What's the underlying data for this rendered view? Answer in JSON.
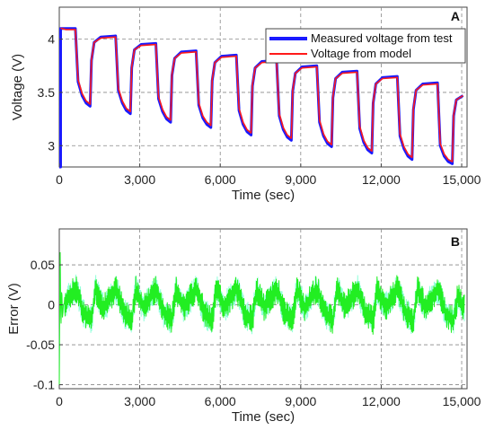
{
  "chart_data": [
    {
      "panel_label": "A",
      "type": "line",
      "xlabel": "Time (sec)",
      "ylabel": "Voltage (V)",
      "xlim": [
        0,
        15200
      ],
      "ylim": [
        2.8,
        4.3
      ],
      "xticks": [
        0,
        3000,
        6000,
        9000,
        12000,
        15000
      ],
      "xtick_labels": [
        "0",
        "3,000",
        "6,000",
        "9,000",
        "12,000",
        "15,000"
      ],
      "yticks": [
        3,
        3.5,
        4
      ],
      "ytick_labels": [
        "3",
        "3.5",
        "4"
      ],
      "grid": true,
      "legend_position": "top-right",
      "series": [
        {
          "name": "Measured voltage from test",
          "color": "#1a1aff",
          "x": [
            0,
            50,
            50,
            100,
            250,
            600,
            700,
            850,
            1000,
            1150,
            1200,
            1300,
            1550,
            2100,
            2200,
            2350,
            2500,
            2650,
            2700,
            2800,
            3050,
            3600,
            3700,
            3850,
            4000,
            4150,
            4200,
            4300,
            4550,
            5100,
            5200,
            5350,
            5500,
            5650,
            5700,
            5800,
            6050,
            6600,
            6700,
            6850,
            7000,
            7150,
            7200,
            7300,
            7550,
            8100,
            8200,
            8350,
            8500,
            8650,
            8700,
            8800,
            9050,
            9600,
            9700,
            9850,
            10000,
            10150,
            10200,
            10300,
            10550,
            11100,
            11200,
            11350,
            11500,
            11650,
            11700,
            11800,
            12050,
            12600,
            12700,
            12850,
            13000,
            13150,
            13200,
            13300,
            13550,
            14100,
            14200,
            14350,
            14500,
            14650,
            14700,
            14800,
            15050
          ],
          "y": [
            2.8,
            2.8,
            4.1,
            4.1,
            4.1,
            4.1,
            3.6,
            3.47,
            3.4,
            3.37,
            3.8,
            3.97,
            4.02,
            4.03,
            3.52,
            3.4,
            3.33,
            3.3,
            3.73,
            3.9,
            3.95,
            3.96,
            3.44,
            3.32,
            3.25,
            3.22,
            3.66,
            3.82,
            3.88,
            3.89,
            3.38,
            3.26,
            3.2,
            3.17,
            3.61,
            3.78,
            3.84,
            3.85,
            3.33,
            3.2,
            3.13,
            3.1,
            3.56,
            3.73,
            3.79,
            3.8,
            3.28,
            3.15,
            3.08,
            3.05,
            3.51,
            3.68,
            3.74,
            3.75,
            3.22,
            3.09,
            3.02,
            2.99,
            3.45,
            3.63,
            3.69,
            3.7,
            3.16,
            3.03,
            2.96,
            2.93,
            3.4,
            3.58,
            3.64,
            3.65,
            3.09,
            2.97,
            2.9,
            2.87,
            3.34,
            3.52,
            3.58,
            3.59,
            3.0,
            2.9,
            2.85,
            2.83,
            3.28,
            3.43,
            3.47
          ]
        },
        {
          "name": "Voltage from model",
          "color": "#ff1a1a",
          "x": [
            50,
            100,
            250,
            600,
            700,
            850,
            1000,
            1150,
            1200,
            1300,
            1550,
            2100,
            2200,
            2350,
            2500,
            2650,
            2700,
            2800,
            3050,
            3600,
            3700,
            3850,
            4000,
            4150,
            4200,
            4300,
            4550,
            5100,
            5200,
            5350,
            5500,
            5650,
            5700,
            5800,
            6050,
            6600,
            6700,
            6850,
            7000,
            7150,
            7200,
            7300,
            7550,
            8100,
            8200,
            8350,
            8500,
            8650,
            8700,
            8800,
            9050,
            9600,
            9700,
            9850,
            10000,
            10150,
            10200,
            10300,
            10550,
            11100,
            11200,
            11350,
            11500,
            11650,
            11700,
            11800,
            12050,
            12600,
            12700,
            12850,
            13000,
            13150,
            13200,
            13300,
            13550,
            14100,
            14200,
            14350,
            14500,
            14650,
            14700,
            14800,
            15050
          ],
          "y": [
            4.1,
            4.1,
            4.09,
            4.09,
            3.62,
            3.49,
            3.42,
            3.39,
            3.81,
            3.97,
            4.01,
            4.02,
            3.54,
            3.42,
            3.35,
            3.32,
            3.74,
            3.9,
            3.94,
            3.95,
            3.46,
            3.34,
            3.27,
            3.24,
            3.67,
            3.82,
            3.87,
            3.88,
            3.4,
            3.28,
            3.22,
            3.19,
            3.62,
            3.78,
            3.83,
            3.84,
            3.35,
            3.22,
            3.15,
            3.12,
            3.57,
            3.73,
            3.78,
            3.79,
            3.3,
            3.17,
            3.1,
            3.07,
            3.52,
            3.68,
            3.73,
            3.74,
            3.24,
            3.11,
            3.04,
            3.01,
            3.46,
            3.63,
            3.68,
            3.69,
            3.18,
            3.05,
            2.98,
            2.95,
            3.41,
            3.58,
            3.63,
            3.64,
            3.11,
            2.99,
            2.92,
            2.89,
            3.35,
            3.52,
            3.57,
            3.58,
            3.02,
            2.92,
            2.87,
            2.85,
            3.29,
            3.43,
            3.47
          ]
        }
      ]
    },
    {
      "panel_label": "B",
      "type": "line",
      "xlabel": "Time (sec)",
      "ylabel": "Error (V)",
      "xlim": [
        0,
        15200
      ],
      "ylim": [
        -0.105,
        0.095
      ],
      "xticks": [
        0,
        3000,
        6000,
        9000,
        12000,
        15000
      ],
      "xtick_labels": [
        "0",
        "3,000",
        "6,000",
        "9,000",
        "12,000",
        "15,000"
      ],
      "yticks": [
        -0.1,
        -0.05,
        0,
        0.05
      ],
      "ytick_labels": [
        "-0.1",
        "-0.05",
        "0",
        "0.05"
      ],
      "grid": true,
      "series": [
        {
          "color": "#22ee22",
          "band_color": "#66ffcc",
          "x": [
            0,
            30,
            60,
            90,
            120,
            150,
            600,
            700,
            900,
            1200,
            1350,
            1650,
            2100,
            2200,
            2400,
            2700,
            2850,
            3150,
            3600,
            3700,
            3900,
            4200,
            4350,
            4650,
            5100,
            5200,
            5400,
            5700,
            5850,
            6150,
            6600,
            6700,
            6900,
            7200,
            7350,
            7650,
            8100,
            8200,
            8400,
            8700,
            8850,
            9150,
            9600,
            9700,
            9900,
            10200,
            10350,
            10650,
            11100,
            11200,
            11400,
            11700,
            11850,
            12150,
            12600,
            12700,
            12900,
            13200,
            13350,
            13650,
            14100,
            14200,
            14400,
            14700,
            14850,
            15100
          ],
          "y": [
            -0.1,
            0.08,
            -0.04,
            0.03,
            -0.02,
            0.0,
            0.02,
            0.015,
            -0.01,
            -0.02,
            0.02,
            -0.005,
            0.02,
            0.012,
            -0.01,
            -0.02,
            0.02,
            -0.004,
            0.02,
            0.012,
            -0.01,
            -0.02,
            0.02,
            -0.004,
            0.02,
            0.012,
            -0.01,
            -0.02,
            0.02,
            -0.004,
            0.02,
            0.012,
            -0.01,
            -0.02,
            0.02,
            -0.004,
            0.02,
            0.012,
            -0.01,
            -0.02,
            0.02,
            -0.004,
            0.02,
            0.012,
            -0.01,
            -0.02,
            0.02,
            -0.004,
            0.02,
            0.012,
            -0.01,
            -0.02,
            0.02,
            -0.004,
            0.02,
            0.012,
            -0.01,
            -0.02,
            0.02,
            -0.004,
            0.02,
            0.012,
            -0.01,
            -0.02,
            0.01,
            -0.005
          ],
          "noise_amplitude": 0.012
        }
      ]
    }
  ]
}
